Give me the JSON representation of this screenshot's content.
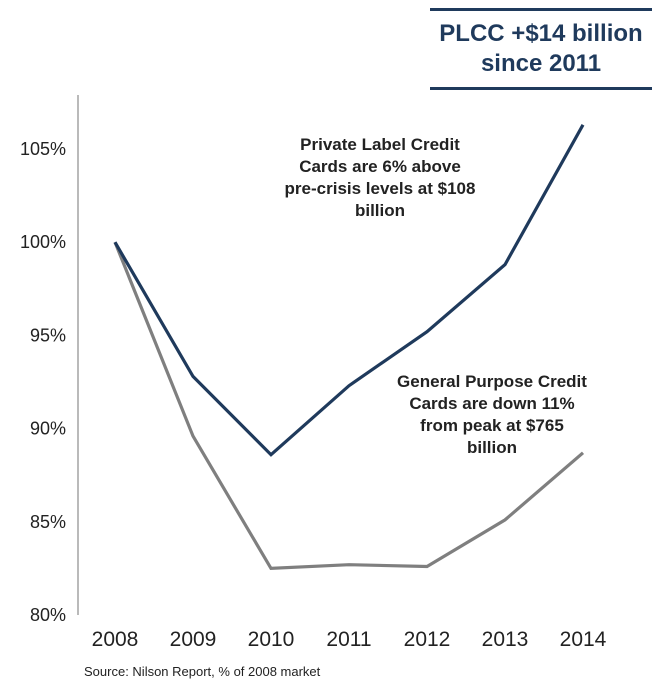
{
  "callout": {
    "line1": "PLCC +$14 billion",
    "line2": "since 2011"
  },
  "annotations": {
    "plcc": [
      "Private Label Credit",
      "Cards are 6% above",
      "pre-crisis levels at $108",
      "billion"
    ],
    "gpcc": [
      "General Purpose Credit",
      "Cards are down 11%",
      "from peak at $765",
      "billion"
    ]
  },
  "source": "Source: Nilson Report, % of 2008 market",
  "chart_data": {
    "type": "line",
    "title": "",
    "xlabel": "",
    "ylabel": "",
    "categories": [
      "2008",
      "2009",
      "2010",
      "2011",
      "2012",
      "2013",
      "2014"
    ],
    "ylim": [
      80,
      107
    ],
    "yticks": [
      80,
      85,
      90,
      95,
      100,
      105
    ],
    "ytick_labels": [
      "80%",
      "85%",
      "90%",
      "95%",
      "100%",
      "105%"
    ],
    "grid": false,
    "series": [
      {
        "values": [
          100,
          92.8,
          88.6,
          92.3,
          95.2,
          98.8,
          106.3
        ],
        "color": "#1f3a5c"
      },
      {
        "values": [
          100,
          89.6,
          82.5,
          82.7,
          82.6,
          85.1,
          88.7
        ],
        "color": "#7f7f7f"
      }
    ]
  }
}
